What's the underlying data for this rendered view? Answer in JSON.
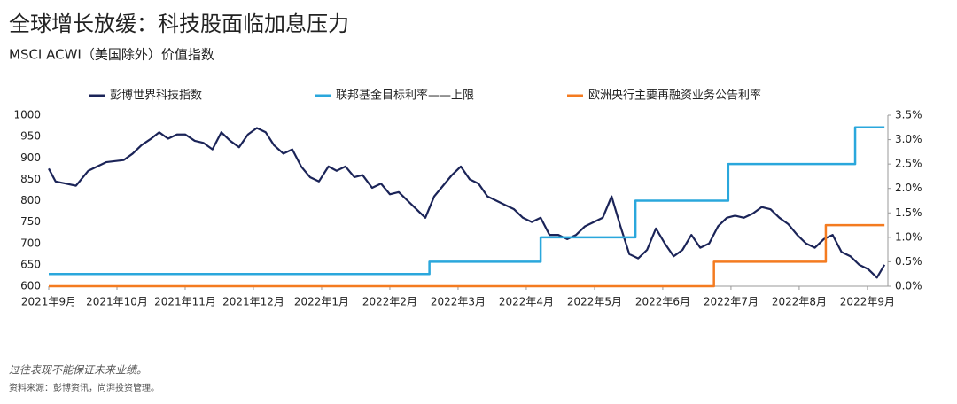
{
  "chart_data": {
    "type": "line",
    "title": "全球增长放缓：科技股面临加息压力",
    "subtitle": "MSCI ACWI（美国除外）价值指数",
    "notes": [
      "过往表现不能保证未来业绩。",
      "资料来源：彭博资讯，尚湃投资管理。"
    ],
    "xlim": [
      0,
      12.3
    ],
    "xticks": [
      {
        "value": 0,
        "label": "2021年9月"
      },
      {
        "value": 1,
        "label": "2021年10月"
      },
      {
        "value": 2,
        "label": "2021年11月"
      },
      {
        "value": 3,
        "label": "2021年12月"
      },
      {
        "value": 4,
        "label": "2022年1月"
      },
      {
        "value": 5,
        "label": "2022年2月"
      },
      {
        "value": 6,
        "label": "2022年3月"
      },
      {
        "value": 7,
        "label": "2022年4月"
      },
      {
        "value": 8,
        "label": "2022年5月"
      },
      {
        "value": 9,
        "label": "2022年6月"
      },
      {
        "value": 10,
        "label": "2022年7月"
      },
      {
        "value": 11,
        "label": "2022年8月"
      },
      {
        "value": 12,
        "label": "2022年9月"
      }
    ],
    "ylim": [
      600,
      1000
    ],
    "yticks": [
      600,
      650,
      700,
      750,
      800,
      850,
      900,
      950,
      1000
    ],
    "y2lim": [
      0,
      3.5
    ],
    "y2ticks": [
      {
        "value": 0,
        "label": "0.0%"
      },
      {
        "value": 0.5,
        "label": "0.5%"
      },
      {
        "value": 1,
        "label": "1.0%"
      },
      {
        "value": 1.5,
        "label": "1.5%"
      },
      {
        "value": 2,
        "label": "2.0%"
      },
      {
        "value": 2.5,
        "label": "2.5%"
      },
      {
        "value": 3,
        "label": "3.0%"
      },
      {
        "value": 3.5,
        "label": "3.5%"
      }
    ],
    "series": [
      {
        "name": "彭博世界科技指数",
        "color": "#1b2458",
        "x": [
          0,
          0.1,
          0.25,
          0.4,
          0.58,
          0.84,
          1.1,
          1.23,
          1.36,
          1.5,
          1.62,
          1.75,
          1.88,
          2.0,
          2.14,
          2.27,
          2.4,
          2.53,
          2.66,
          2.79,
          2.92,
          3.05,
          3.18,
          3.3,
          3.44,
          3.57,
          3.7,
          3.83,
          3.96,
          4.1,
          4.22,
          4.35,
          4.48,
          4.6,
          4.74,
          4.87,
          5.0,
          5.13,
          5.26,
          5.39,
          5.52,
          5.65,
          5.78,
          5.91,
          6.04,
          6.17,
          6.3,
          6.43,
          6.56,
          6.69,
          6.82,
          6.95,
          7.08,
          7.21,
          7.34,
          7.47,
          7.6,
          7.73,
          7.86,
          7.99,
          8.12,
          8.25,
          8.38,
          8.51,
          8.64,
          8.77,
          8.9,
          9.03,
          9.16,
          9.29,
          9.42,
          9.55,
          9.68,
          9.81,
          9.94,
          10.06,
          10.19,
          10.32,
          10.45,
          10.58,
          10.71,
          10.84,
          10.97,
          11.1,
          11.23,
          11.36,
          11.49,
          11.62,
          11.75,
          11.88,
          12.01,
          12.14,
          12.25
        ],
        "values": [
          875,
          845,
          840,
          835,
          870,
          890,
          895,
          910,
          930,
          945,
          960,
          945,
          955,
          955,
          940,
          935,
          920,
          960,
          940,
          925,
          955,
          970,
          960,
          930,
          910,
          920,
          880,
          855,
          845,
          880,
          870,
          880,
          855,
          860,
          830,
          840,
          815,
          820,
          800,
          780,
          760,
          810,
          835,
          860,
          880,
          850,
          840,
          810,
          800,
          790,
          780,
          760,
          750,
          760,
          720,
          720,
          710,
          720,
          740,
          750,
          760,
          810,
          740,
          675,
          665,
          685,
          735,
          700,
          670,
          685,
          720,
          690,
          700,
          740,
          760,
          765,
          760,
          770,
          785,
          780,
          760,
          745,
          720,
          700,
          690,
          710,
          720,
          680,
          670,
          650,
          640,
          620,
          650
        ]
      },
      {
        "name": "联邦基金目标利率——上限",
        "color": "#2aa7dc",
        "axis": "y2",
        "step": true,
        "x": [
          0,
          5.58,
          7.21,
          8.6,
          9.96,
          11.82,
          12.25
        ],
        "values": [
          0.25,
          0.5,
          1,
          1.75,
          2.5,
          3.25,
          3.25
        ]
      },
      {
        "name": "欧洲央行主要再融资业务公告利率",
        "color": "#f47b20",
        "axis": "y2",
        "step": true,
        "x": [
          0,
          9.75,
          11.39,
          12.25
        ],
        "values": [
          0,
          0.5,
          1.25,
          1.25
        ]
      }
    ]
  }
}
